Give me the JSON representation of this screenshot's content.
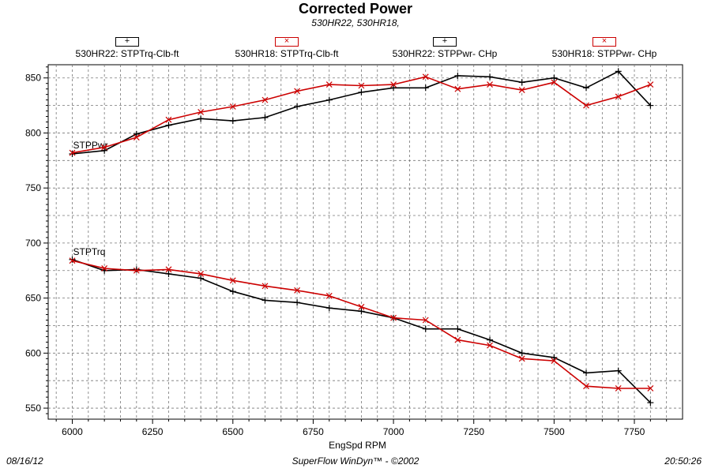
{
  "header": {
    "title": "Corrected Power",
    "subtitle": "530HR22, 530HR18,"
  },
  "legend": [
    {
      "label": "530HR22: STPTrq-Clb-ft",
      "marker": "+",
      "color": "#000000"
    },
    {
      "label": "530HR18: STPTrq-Clb-ft",
      "marker": "×",
      "color": "#cc0000"
    },
    {
      "label": "530HR22: STPPwr- CHp",
      "marker": "+",
      "color": "#000000"
    },
    {
      "label": "530HR18: STPPwr- CHp",
      "marker": "×",
      "color": "#cc0000"
    }
  ],
  "footer": {
    "date": "08/16/12",
    "credit": "SuperFlow WinDyn™ - ©2002",
    "time": "20:50:26"
  },
  "chart_data": {
    "type": "line",
    "title": "Corrected Power",
    "subtitle": "530HR22, 530HR18,",
    "xlabel": "EngSpd  RPM",
    "ylabel": "",
    "xlim": [
      5925,
      7900
    ],
    "ylim": [
      540,
      862
    ],
    "xticks": [
      6000,
      6250,
      6500,
      6750,
      7000,
      7250,
      7500,
      7750
    ],
    "yticks": [
      550,
      600,
      650,
      700,
      750,
      800,
      850
    ],
    "grid": true,
    "legend_position": "top",
    "annotations": [
      {
        "text": "STPPwr",
        "x": 6000,
        "y": 786
      },
      {
        "text": "STPTrq",
        "x": 6000,
        "y": 689
      }
    ],
    "x": [
      6000,
      6100,
      6200,
      6300,
      6400,
      6500,
      6600,
      6700,
      6800,
      6900,
      7000,
      7100,
      7200,
      7300,
      7400,
      7500,
      7600,
      7700,
      7800
    ],
    "series": [
      {
        "name": "530HR22: STPTrq-Clb-ft",
        "color": "#000000",
        "marker": "plus",
        "values": [
          685,
          675,
          676,
          672,
          668,
          656,
          648,
          646,
          641,
          638,
          632,
          622,
          622,
          612,
          600,
          596,
          582,
          584,
          555
        ]
      },
      {
        "name": "530HR18: STPTrq-Clb-ft",
        "color": "#cc0000",
        "marker": "x",
        "values": [
          684,
          677,
          675,
          676,
          672,
          666,
          661,
          657,
          652,
          642,
          632,
          630,
          612,
          607,
          595,
          593,
          570,
          568,
          568
        ]
      },
      {
        "name": "530HR22: STPPwr- CHp",
        "color": "#000000",
        "marker": "plus",
        "values": [
          781,
          784,
          799,
          807,
          813,
          811,
          814,
          824,
          830,
          837,
          841,
          841,
          852,
          851,
          846,
          850,
          841,
          856,
          825
        ]
      },
      {
        "name": "530HR18: STPPwr- CHp",
        "color": "#cc0000",
        "marker": "x",
        "values": [
          782,
          787,
          796,
          812,
          819,
          824,
          830,
          838,
          844,
          843,
          844,
          851,
          840,
          844,
          839,
          846,
          825,
          833,
          844
        ]
      }
    ]
  }
}
